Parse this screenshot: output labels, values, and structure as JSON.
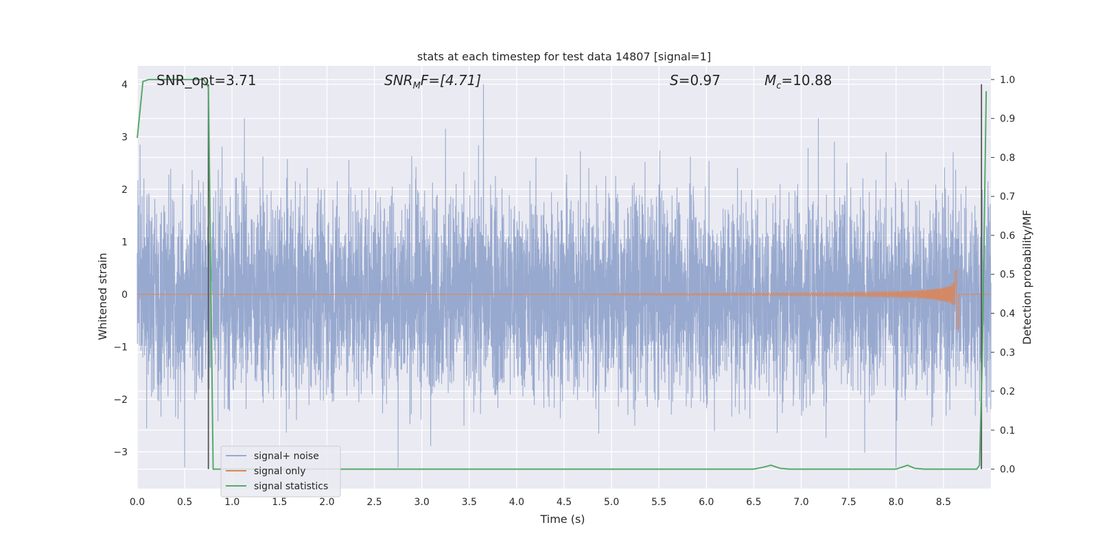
{
  "chart_data": {
    "type": "line",
    "title": "stats at each timestep for test data 14807 [signal=1]",
    "xlabel": "Time (s)",
    "ylabel": "Whitened strain",
    "y2label": "Detection probability/MF",
    "xlim": [
      0,
      9.0
    ],
    "ylim": [
      -3.7,
      4.35
    ],
    "y2lim": [
      -0.05,
      1.035
    ],
    "xticks": [
      "0.0",
      "0.5",
      "1.0",
      "1.5",
      "2.0",
      "2.5",
      "3.0",
      "3.5",
      "4.0",
      "4.5",
      "5.0",
      "5.5",
      "6.0",
      "6.5",
      "7.0",
      "7.5",
      "8.0",
      "8.5"
    ],
    "yticks": [
      "4",
      "3",
      "2",
      "1",
      "0",
      "−1",
      "−2",
      "−3"
    ],
    "y2ticks": [
      "1.0",
      "0.9",
      "0.8",
      "0.7",
      "0.6",
      "0.5",
      "0.4",
      "0.3",
      "0.2",
      "0.1",
      "0.0"
    ],
    "annotations": {
      "snr_opt": "SNR_opt=3.71",
      "snr_mf_main": "SNR",
      "snr_mf_sub": "M",
      "snr_mf_rest": "F=[4.71]",
      "s_main": "S",
      "s_rest": "=0.97",
      "mc_main": "M",
      "mc_sub": "c",
      "mc_rest": "=10.88"
    },
    "legend": {
      "placement": "lower-left",
      "entries": [
        "signal+ noise",
        "signal only",
        "signal statistics"
      ]
    },
    "colors": {
      "noise": "#98a9cf",
      "signal": "#dd8452",
      "stats": "#55a868",
      "vline": "#555555",
      "bg": "#eaeaf2",
      "grid": "#ffffff"
    },
    "vlines": [
      0.75,
      8.9
    ],
    "series": [
      {
        "name": "signal+ noise",
        "x_range": [
          0,
          9.0
        ],
        "typical_amplitude": 1.8,
        "peak_max": 4.0,
        "peak_min": -3.3,
        "notable_peaks": [
          {
            "x": 3.65,
            "y": 4.0
          },
          {
            "x": 1.13,
            "y": 3.35
          },
          {
            "x": 7.18,
            "y": 3.35
          },
          {
            "x": 3.25,
            "y": 3.15
          },
          {
            "x": 0.03,
            "y": 2.85
          },
          {
            "x": 0.5,
            "y": -3.3
          },
          {
            "x": 2.75,
            "y": -3.3
          },
          {
            "x": 8.0,
            "y": -3.3
          }
        ]
      },
      {
        "name": "signal only",
        "x_range": [
          0,
          8.75
        ],
        "chirp_start": 5.0,
        "peak_time": 8.65,
        "peak_max": 0.45,
        "peak_min": -0.65
      },
      {
        "name": "signal statistics",
        "axis": "right",
        "x": [
          0.0,
          0.06,
          0.12,
          0.5,
          0.7,
          0.75,
          0.8,
          1.0,
          6.5,
          6.6,
          6.68,
          6.78,
          6.88,
          8.0,
          8.06,
          8.12,
          8.2,
          8.3,
          8.85,
          8.88,
          8.91,
          8.95
        ],
        "y": [
          0.85,
          0.995,
          1.0,
          1.0,
          1.0,
          0.98,
          0.0,
          0.0,
          0.0,
          0.005,
          0.01,
          0.002,
          0.0,
          0.0,
          0.005,
          0.01,
          0.002,
          0.0,
          0.0,
          0.01,
          0.3,
          0.97
        ]
      }
    ]
  }
}
